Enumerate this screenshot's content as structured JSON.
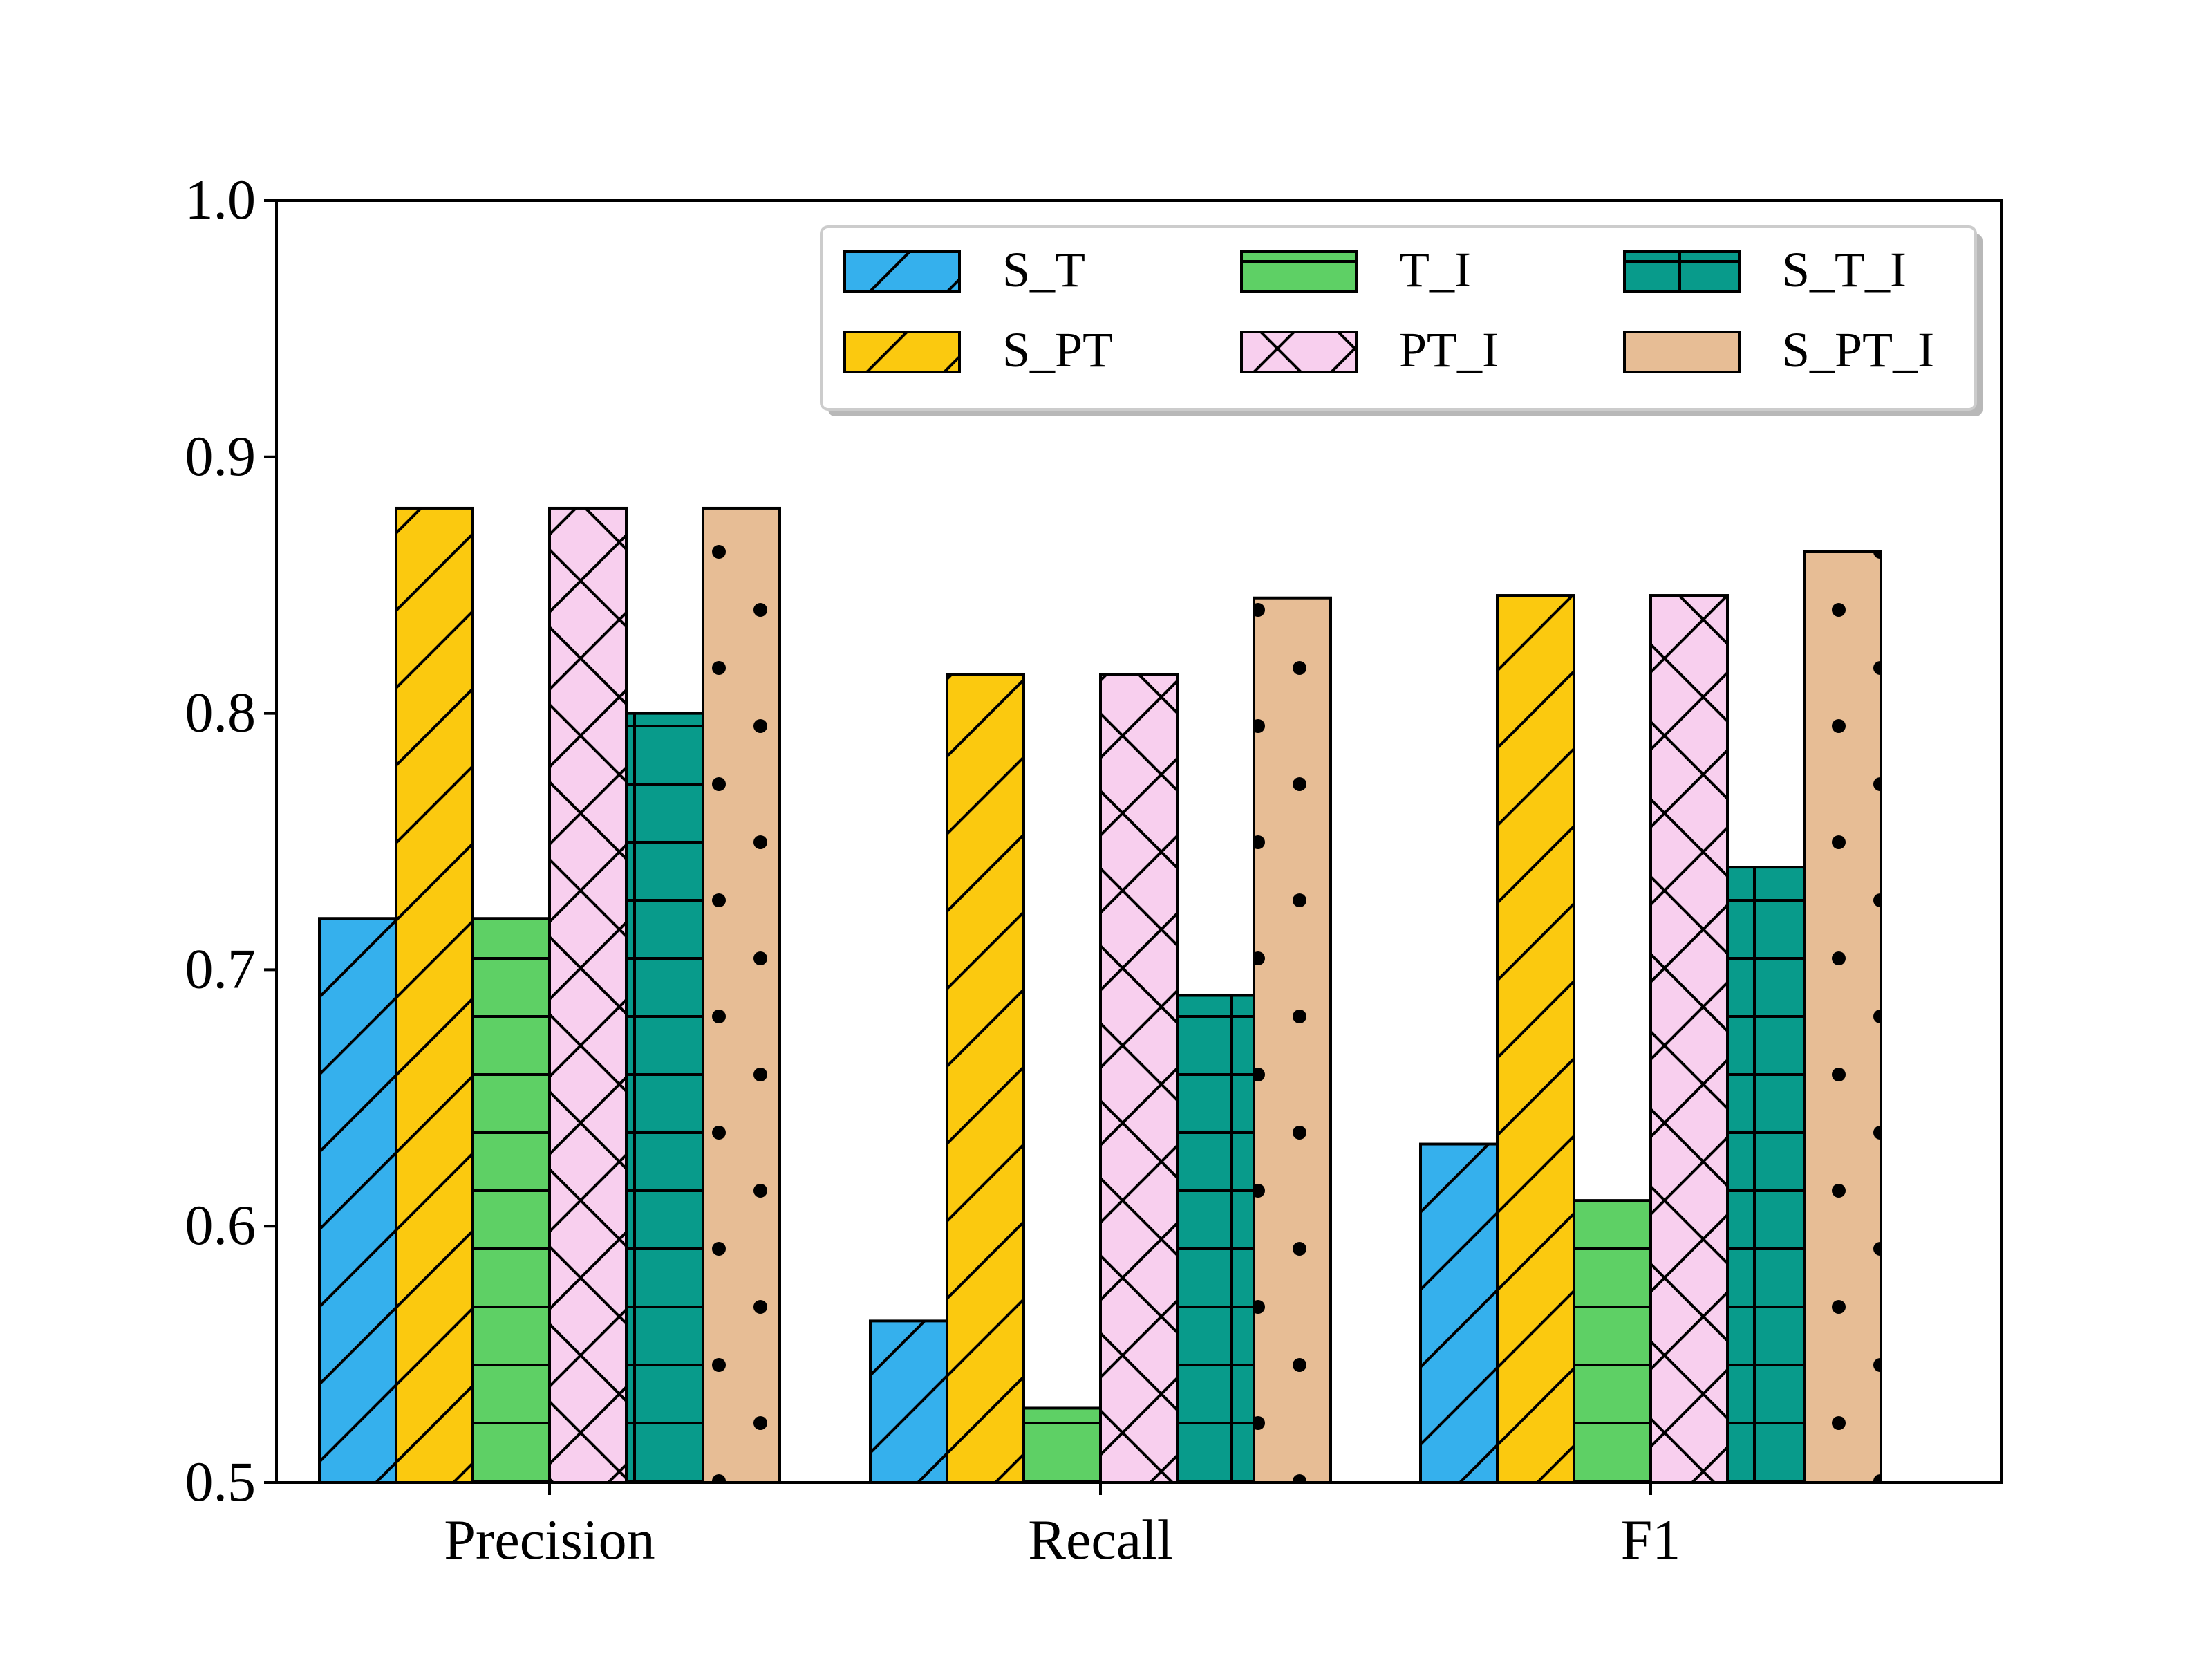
{
  "chart_data": {
    "type": "bar",
    "categories": [
      "Precision",
      "Recall",
      "F1"
    ],
    "ylim": [
      0.5,
      1.0
    ],
    "yticks": [
      "0.5",
      "0.6",
      "0.7",
      "0.8",
      "0.9",
      "1.0"
    ],
    "grid": false,
    "legend_position": "top-right",
    "series": [
      {
        "name": "S_T",
        "color": "#35b0ed",
        "hatch": "diagonal",
        "values": [
          0.72,
          0.563,
          0.632
        ]
      },
      {
        "name": "S_PT",
        "color": "#fbc90f",
        "hatch": "diagonal",
        "values": [
          0.88,
          0.815,
          0.846
        ]
      },
      {
        "name": "T_I",
        "color": "#5ed065",
        "hatch": "horizontal",
        "values": [
          0.72,
          0.529,
          0.61
        ]
      },
      {
        "name": "PT_I",
        "color": "#f8cfee",
        "hatch": "cross",
        "values": [
          0.88,
          0.815,
          0.846
        ]
      },
      {
        "name": "S_T_I",
        "color": "#089b8b",
        "hatch": "grid",
        "values": [
          0.8,
          0.69,
          0.74
        ]
      },
      {
        "name": "S_PT_I",
        "color": "#e7bd95",
        "hatch": "dots",
        "values": [
          0.88,
          0.845,
          0.863
        ]
      }
    ]
  }
}
